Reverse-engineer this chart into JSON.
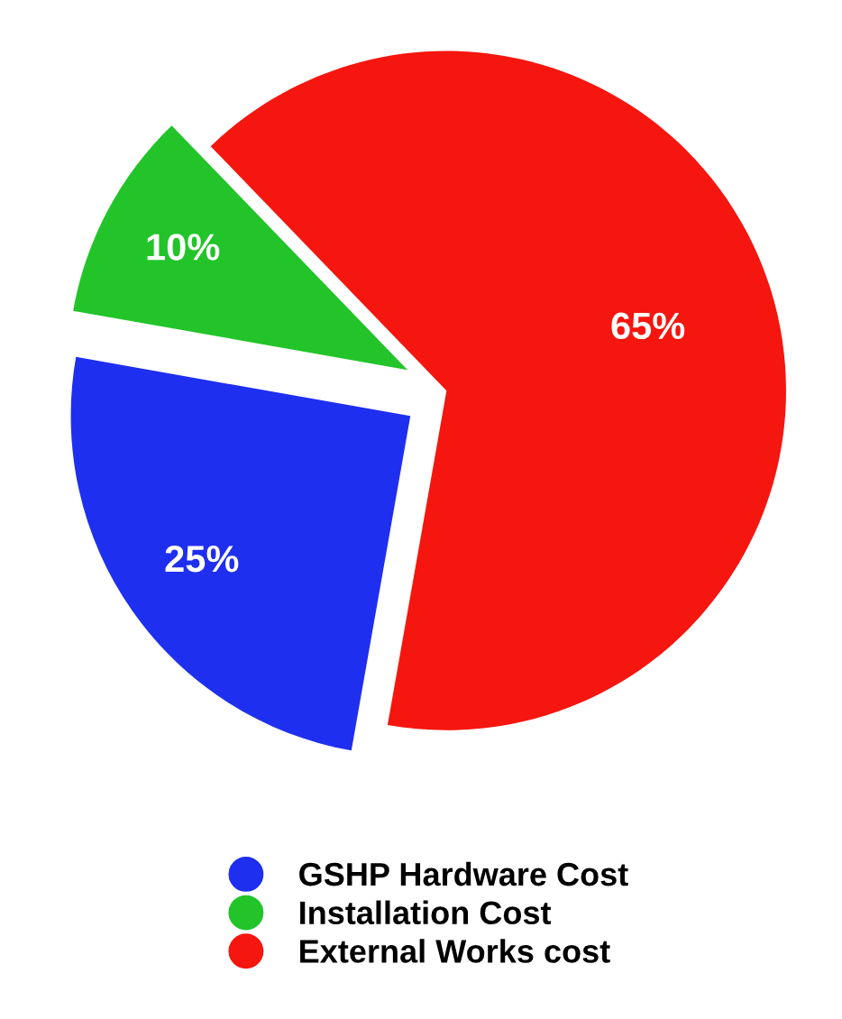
{
  "chart_data": {
    "type": "pie",
    "categories": [
      "GSHP Hardware Cost",
      "Installation Cost",
      "External Works cost"
    ],
    "values": [
      25,
      10,
      65
    ],
    "colors": [
      "#1f2ff0",
      "#22c42a",
      "#f5160f"
    ],
    "value_labels": [
      "25%",
      "10%",
      "65%"
    ],
    "legend": "bottom"
  }
}
